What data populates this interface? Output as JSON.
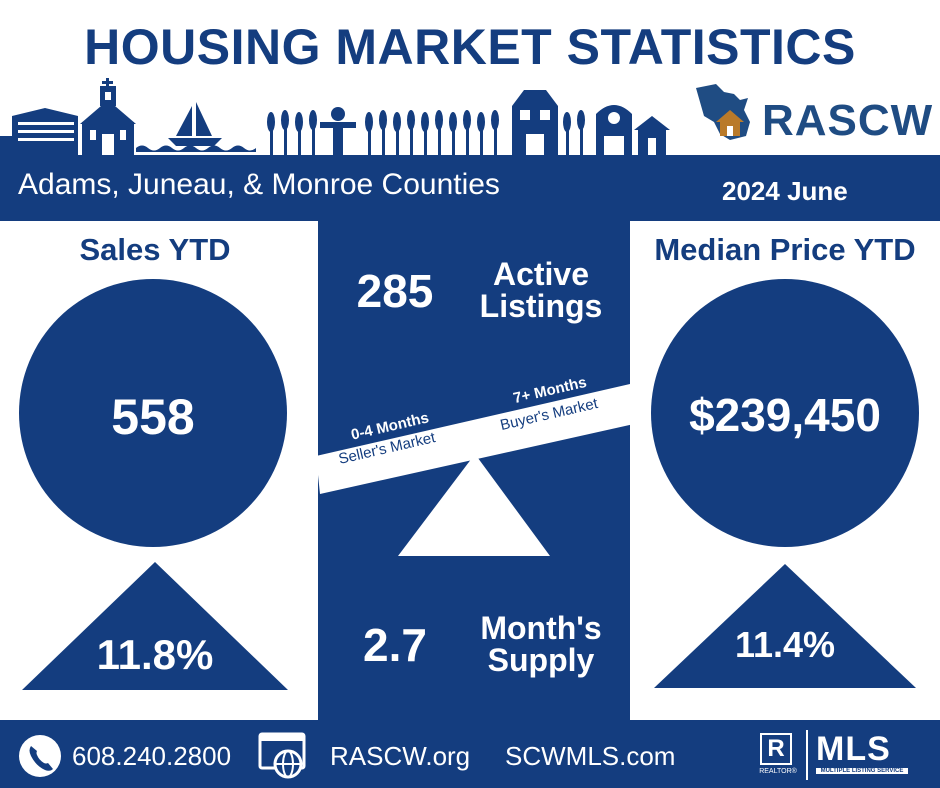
{
  "header": {
    "title": "HOUSING MARKET STATISTICS",
    "logo_text": "RASCW"
  },
  "band": {
    "counties": "Adams, Juneau, & Monroe Counties",
    "period": "2024 June"
  },
  "sales": {
    "label": "Sales YTD",
    "value": "558",
    "change": "11.8%",
    "direction": "up"
  },
  "inventory": {
    "active_value": "285",
    "active_label_1": "Active",
    "active_label_2": "Listings",
    "supply_value": "2.7",
    "supply_label_1": "Month's",
    "supply_label_2": "Supply"
  },
  "scale": {
    "left_top": "0-4 Months",
    "left_bottom": "Seller's Market",
    "right_top": "7+ Months",
    "right_bottom": "Buyer's Market"
  },
  "median": {
    "label": "Median Price YTD",
    "value": "$239,450",
    "change": "11.4%",
    "direction": "up"
  },
  "footer": {
    "phone": "608.240.2800",
    "site1": "RASCW.org",
    "site2": "SCWMLS.com",
    "realtor_mark": "R",
    "realtor_text": "REALTOR®",
    "mls_text": "MLS",
    "mls_sub": "MULTIPLE LISTING SERVICE"
  },
  "colors": {
    "navy": "#143d7f",
    "logo_gold": "#b97a2a"
  }
}
